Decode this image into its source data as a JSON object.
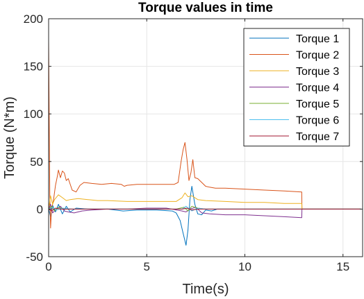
{
  "chart_data": {
    "type": "line",
    "title": "Torque values in time",
    "xlabel": "Time(s)",
    "ylabel": "Torque (N*m)",
    "xlim": [
      0,
      16
    ],
    "ylim": [
      -50,
      200
    ],
    "xticks": [
      0,
      5,
      10,
      15
    ],
    "yticks": [
      -50,
      0,
      50,
      100,
      150,
      200
    ],
    "grid": true,
    "legend_position": "top-right",
    "series": [
      {
        "name": "Torque 1",
        "color": "#0072BD",
        "points": [
          [
            0,
            0
          ],
          [
            0.1,
            -8
          ],
          [
            0.2,
            4
          ],
          [
            0.35,
            -3
          ],
          [
            0.5,
            5
          ],
          [
            0.7,
            -5
          ],
          [
            0.9,
            3
          ],
          [
            1.1,
            -3
          ],
          [
            1.4,
            1
          ],
          [
            2,
            0
          ],
          [
            3,
            0
          ],
          [
            3.8,
            -2
          ],
          [
            4.5,
            -1
          ],
          [
            5.5,
            -1
          ],
          [
            6.3,
            -2
          ],
          [
            6.5,
            -4
          ],
          [
            6.7,
            -12
          ],
          [
            6.85,
            -25
          ],
          [
            7.0,
            -38
          ],
          [
            7.1,
            -22
          ],
          [
            7.2,
            10
          ],
          [
            7.3,
            24
          ],
          [
            7.45,
            5
          ],
          [
            7.6,
            -5
          ],
          [
            7.8,
            -6
          ],
          [
            8.0,
            -1
          ],
          [
            8.3,
            -2
          ],
          [
            8.6,
            0
          ],
          [
            9,
            0
          ],
          [
            12.9,
            0
          ],
          [
            15.9,
            0
          ]
        ]
      },
      {
        "name": "Torque 2",
        "color": "#D95319",
        "points": [
          [
            0,
            178
          ],
          [
            0.03,
            100
          ],
          [
            0.06,
            15
          ],
          [
            0.1,
            -20
          ],
          [
            0.15,
            0
          ],
          [
            0.25,
            10
          ],
          [
            0.35,
            25
          ],
          [
            0.45,
            35
          ],
          [
            0.5,
            41
          ],
          [
            0.6,
            33
          ],
          [
            0.7,
            40
          ],
          [
            0.8,
            38
          ],
          [
            0.9,
            30
          ],
          [
            1.0,
            32
          ],
          [
            1.2,
            20
          ],
          [
            1.4,
            18
          ],
          [
            1.6,
            25
          ],
          [
            1.8,
            28
          ],
          [
            2.2,
            27
          ],
          [
            2.7,
            26
          ],
          [
            3.2,
            27
          ],
          [
            3.7,
            26
          ],
          [
            3.85,
            24
          ],
          [
            4.0,
            25
          ],
          [
            4.5,
            26
          ],
          [
            5.0,
            26
          ],
          [
            5.5,
            26
          ],
          [
            6.0,
            26
          ],
          [
            6.4,
            26
          ],
          [
            6.6,
            28
          ],
          [
            6.75,
            50
          ],
          [
            6.85,
            62
          ],
          [
            6.95,
            70
          ],
          [
            7.05,
            52
          ],
          [
            7.15,
            30
          ],
          [
            7.25,
            38
          ],
          [
            7.35,
            52
          ],
          [
            7.45,
            33
          ],
          [
            7.6,
            32
          ],
          [
            7.8,
            28
          ],
          [
            8.0,
            24
          ],
          [
            8.2,
            23
          ],
          [
            8.5,
            22
          ],
          [
            9.0,
            22
          ],
          [
            10.0,
            21
          ],
          [
            11.0,
            20
          ],
          [
            12.0,
            19
          ],
          [
            12.9,
            18
          ],
          [
            12.91,
            0
          ],
          [
            15.9,
            0
          ]
        ]
      },
      {
        "name": "Torque 3",
        "color": "#EDB120",
        "points": [
          [
            0,
            0
          ],
          [
            0.1,
            14
          ],
          [
            0.2,
            5
          ],
          [
            0.3,
            10
          ],
          [
            0.5,
            15
          ],
          [
            0.7,
            12
          ],
          [
            0.9,
            9
          ],
          [
            1.1,
            10
          ],
          [
            1.5,
            11
          ],
          [
            2,
            10
          ],
          [
            2.5,
            9
          ],
          [
            3,
            9
          ],
          [
            4,
            8
          ],
          [
            5,
            8
          ],
          [
            6,
            8
          ],
          [
            6.5,
            8
          ],
          [
            6.8,
            12
          ],
          [
            6.95,
            17
          ],
          [
            7.1,
            13
          ],
          [
            7.3,
            14
          ],
          [
            7.6,
            10
          ],
          [
            8,
            9
          ],
          [
            9,
            8
          ],
          [
            10,
            7
          ],
          [
            11,
            7
          ],
          [
            12,
            6
          ],
          [
            12.9,
            6
          ],
          [
            12.91,
            0
          ],
          [
            15.9,
            0
          ]
        ]
      },
      {
        "name": "Torque 4",
        "color": "#7E2F8E",
        "points": [
          [
            0,
            0
          ],
          [
            0.1,
            5
          ],
          [
            0.2,
            -4
          ],
          [
            0.4,
            0
          ],
          [
            0.6,
            3
          ],
          [
            0.8,
            -2
          ],
          [
            1.0,
            -3
          ],
          [
            1.3,
            -4
          ],
          [
            1.7,
            -2
          ],
          [
            2.2,
            -1
          ],
          [
            3,
            0
          ],
          [
            4,
            0
          ],
          [
            5,
            1
          ],
          [
            6,
            1
          ],
          [
            6.8,
            -2
          ],
          [
            7.0,
            -3
          ],
          [
            7.2,
            0
          ],
          [
            7.5,
            2
          ],
          [
            7.8,
            -4
          ],
          [
            8.2,
            -5
          ],
          [
            9,
            -6
          ],
          [
            10,
            -6
          ],
          [
            11,
            -7
          ],
          [
            12,
            -8
          ],
          [
            12.9,
            -9
          ],
          [
            12.91,
            0
          ],
          [
            15.9,
            0
          ]
        ]
      },
      {
        "name": "Torque 5",
        "color": "#77AC30",
        "points": [
          [
            0,
            0
          ],
          [
            0.15,
            3
          ],
          [
            0.3,
            -2
          ],
          [
            0.5,
            2
          ],
          [
            0.8,
            0
          ],
          [
            1.5,
            0
          ],
          [
            3,
            0
          ],
          [
            6.5,
            0
          ],
          [
            6.9,
            2
          ],
          [
            7.1,
            -2
          ],
          [
            7.3,
            3
          ],
          [
            7.6,
            1
          ],
          [
            8,
            0
          ],
          [
            12.9,
            0
          ],
          [
            15.9,
            0
          ]
        ]
      },
      {
        "name": "Torque 6",
        "color": "#4DBEEE",
        "points": [
          [
            0,
            0
          ],
          [
            0.2,
            2
          ],
          [
            0.4,
            -1
          ],
          [
            0.7,
            1
          ],
          [
            1.2,
            0
          ],
          [
            3,
            0
          ],
          [
            6.8,
            0
          ],
          [
            7.0,
            3
          ],
          [
            7.3,
            -2
          ],
          [
            7.6,
            1
          ],
          [
            8,
            0
          ],
          [
            12.9,
            0
          ],
          [
            15.9,
            0
          ]
        ]
      },
      {
        "name": "Torque 7",
        "color": "#A2142F",
        "points": [
          [
            0,
            0
          ],
          [
            0.15,
            -2
          ],
          [
            0.35,
            1
          ],
          [
            0.6,
            0
          ],
          [
            1.5,
            0
          ],
          [
            3,
            0
          ],
          [
            6.8,
            0
          ],
          [
            7.05,
            1
          ],
          [
            7.3,
            -1
          ],
          [
            7.6,
            0
          ],
          [
            12.9,
            0
          ],
          [
            15.9,
            0
          ]
        ]
      }
    ]
  }
}
